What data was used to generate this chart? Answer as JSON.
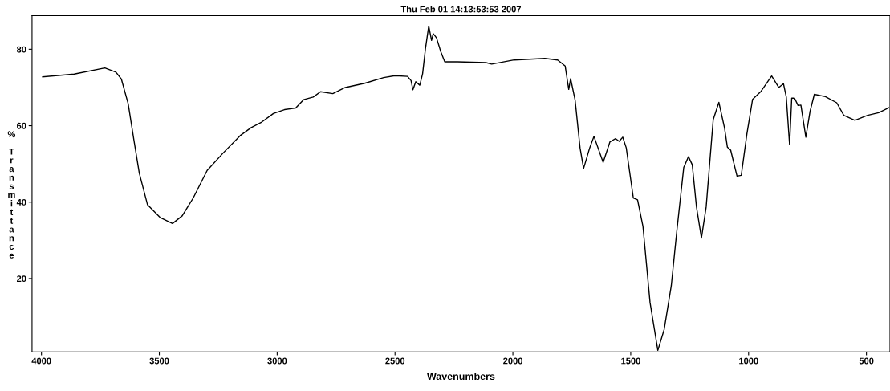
{
  "chart_data": {
    "type": "line",
    "title": "Thu Feb 01 14:13:53:53 2007",
    "xlabel": "Wavenumbers",
    "ylabel": "% Transmittance",
    "x": [
      3995,
      3861,
      3731,
      3684,
      3661,
      3632,
      3608,
      3585,
      3550,
      3497,
      3444,
      3403,
      3356,
      3297,
      3227,
      3157,
      3110,
      3069,
      3016,
      2969,
      2922,
      2888,
      2847,
      2816,
      2764,
      2711,
      2629,
      2548,
      2500,
      2447,
      2432,
      2424,
      2412,
      2395,
      2383,
      2371,
      2357,
      2345,
      2338,
      2324,
      2306,
      2289,
      2235,
      2114,
      2090,
      1995,
      1864,
      1810,
      1778,
      1763,
      1755,
      1736,
      1715,
      1700,
      1674,
      1656,
      1617,
      1588,
      1564,
      1549,
      1534,
      1519,
      1489,
      1471,
      1448,
      1418,
      1385,
      1358,
      1328,
      1305,
      1275,
      1255,
      1239,
      1221,
      1200,
      1180,
      1150,
      1126,
      1102,
      1090,
      1076,
      1049,
      1031,
      1007,
      983,
      947,
      902,
      872,
      852,
      840,
      826,
      817,
      805,
      790,
      778,
      757,
      739,
      721,
      674,
      626,
      596,
      549,
      495,
      448,
      405
    ],
    "series": [
      {
        "color": "#000000",
        "values": [
          72.8,
          73.5,
          75.1,
          74.0,
          72.2,
          65.7,
          56.3,
          47.6,
          39.3,
          36.0,
          34.4,
          36.4,
          41.1,
          48.3,
          53.0,
          57.4,
          59.5,
          60.8,
          63.2,
          64.2,
          64.6,
          66.8,
          67.5,
          68.9,
          68.4,
          70.0,
          71.1,
          72.6,
          73.1,
          72.9,
          71.8,
          69.4,
          71.5,
          70.6,
          73.6,
          80.1,
          86.1,
          82.3,
          84.1,
          83.0,
          79.4,
          76.7,
          76.7,
          76.5,
          76.1,
          77.2,
          77.6,
          77.2,
          75.6,
          69.5,
          72.3,
          66.7,
          54.2,
          48.8,
          54.2,
          57.2,
          50.4,
          55.8,
          56.6,
          55.9,
          57.0,
          54.2,
          41.1,
          40.6,
          33.6,
          13.7,
          1.2,
          6.7,
          18.1,
          32.1,
          49.1,
          51.9,
          49.8,
          38.7,
          30.6,
          38.7,
          61.6,
          66.1,
          59.4,
          54.4,
          53.6,
          46.8,
          47.0,
          57.9,
          66.9,
          69.0,
          73.0,
          70.0,
          71.0,
          67.5,
          55.0,
          67.2,
          67.2,
          65.3,
          65.4,
          57.0,
          63.8,
          68.2,
          67.6,
          66.0,
          62.7,
          61.4,
          62.7,
          63.4,
          64.7
        ]
      }
    ],
    "xlim": [
      4040,
      400
    ],
    "xticks": [
      4000,
      3500,
      3000,
      2500,
      2000,
      1500,
      1000,
      500
    ],
    "ylim": [
      0.8,
      88.8
    ],
    "yticks": [
      20,
      40,
      60,
      80
    ],
    "grid": false,
    "marker": "none",
    "line_style": "solid"
  }
}
